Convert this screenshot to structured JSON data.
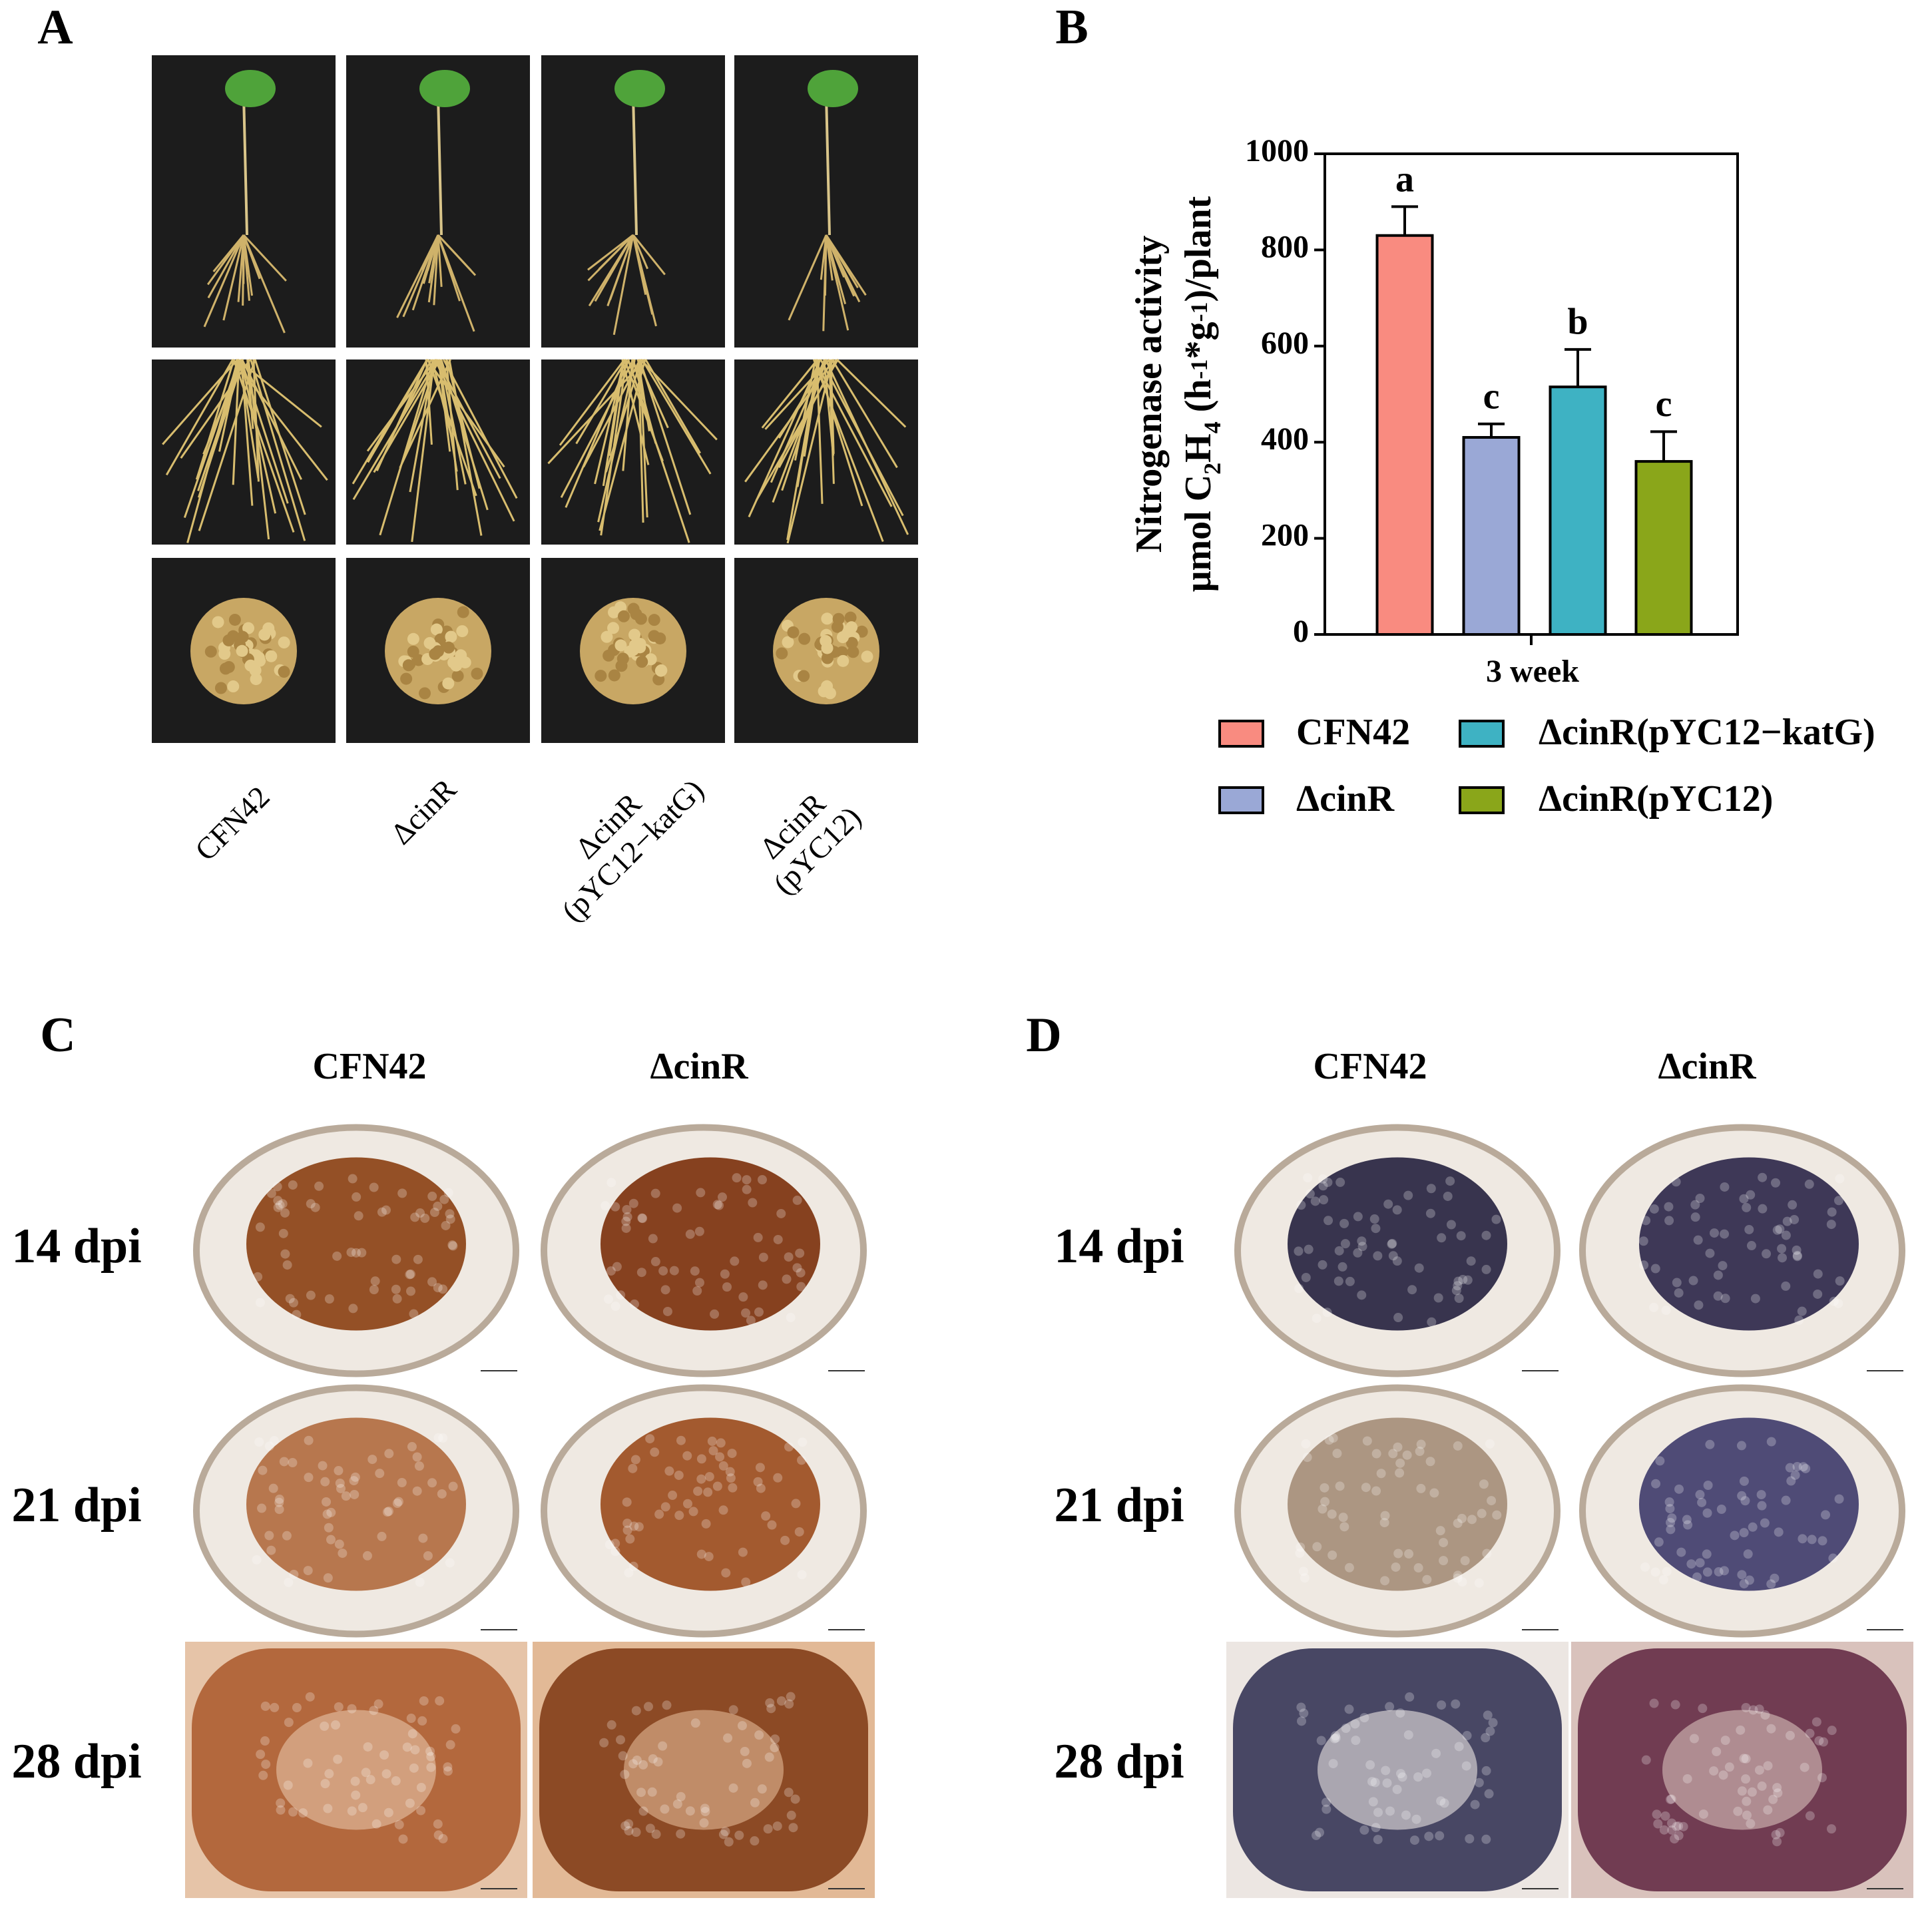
{
  "panel_labels": [
    "A",
    "B",
    "C",
    "D"
  ],
  "panel_a": {
    "strain_labels": [
      [
        "CFN42"
      ],
      [
        "ΔcinR"
      ],
      [
        "ΔcinR",
        "(pYC12−katG)"
      ],
      [
        "ΔcinR",
        "(pYC12)"
      ]
    ]
  },
  "chart_data": {
    "type": "bar",
    "ylabel": [
      "Nitrogenase activity",
      [
        {
          "t": "μmol C"
        },
        {
          "t": "2",
          "shift": "sub"
        },
        {
          "t": "H"
        },
        {
          "t": "4",
          "shift": "sub"
        },
        {
          "t": " (h"
        },
        {
          "t": "-1",
          "shift": "sup"
        },
        {
          "t": "*g"
        },
        {
          "t": "-1",
          "shift": "sup"
        },
        {
          "t": ")/plant"
        }
      ]
    ],
    "categories": [
      "3 week"
    ],
    "series": [
      {
        "name": "CFN42",
        "color": "#f98b80",
        "values": [
          830
        ],
        "errors": [
          60
        ],
        "annotations": [
          "a"
        ]
      },
      {
        "name": "ΔcinR",
        "color": "#9aa8d6",
        "values": [
          410
        ],
        "errors": [
          28
        ],
        "annotations": [
          "c"
        ]
      },
      {
        "name": "ΔcinR(pYC12−katG)",
        "color": "#3eb2c3",
        "values": [
          515
        ],
        "errors": [
          78
        ],
        "annotations": [
          "b"
        ]
      },
      {
        "name": "ΔcinR(pYC12)",
        "color": "#8aa61a",
        "values": [
          360
        ],
        "errors": [
          62
        ],
        "annotations": [
          "c"
        ]
      }
    ],
    "ylim": [
      0,
      1000
    ],
    "yticks": [
      0,
      200,
      400,
      600,
      800,
      1000
    ],
    "legend": "bottom"
  },
  "panel_c": {
    "columns": [
      "CFN42",
      "ΔcinR"
    ],
    "rows": [
      "14 dpi",
      "21 dpi",
      "28 dpi"
    ]
  },
  "panel_d": {
    "columns": [
      "CFN42",
      "ΔcinR"
    ],
    "rows": [
      "14 dpi",
      "21 dpi",
      "28 dpi"
    ]
  }
}
